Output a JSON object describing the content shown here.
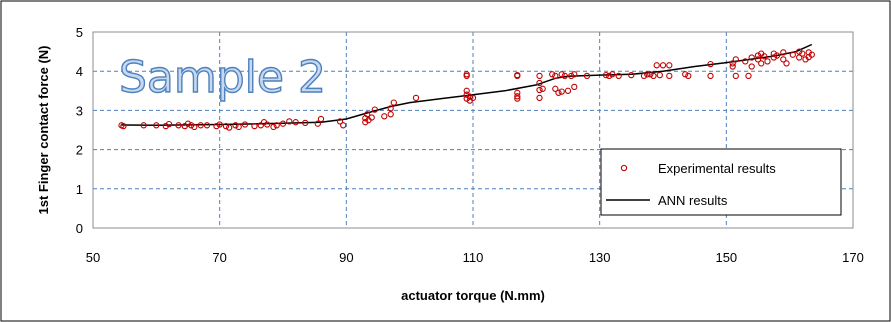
{
  "chart_data": {
    "type": "scatter",
    "xlabel": "actuator torque (N.mm)",
    "ylabel": "1st Finger contact force (N)",
    "annotation": "Sample 2",
    "xlim": [
      50,
      170
    ],
    "ylim": [
      0,
      5
    ],
    "xticks": [
      50,
      70,
      90,
      110,
      130,
      150,
      170
    ],
    "yticks": [
      0,
      1,
      2,
      3,
      4,
      5
    ],
    "grid": true,
    "legend_position": "bottom-right",
    "colors": {
      "experimental": "#c00000",
      "ann": "#000000",
      "grid": "#4f81bd",
      "annotation_fill": "#c6d9f1",
      "annotation_stroke": "#4f81bd"
    },
    "series": [
      {
        "name": "Experimental results",
        "kind": "scatter",
        "points": [
          [
            54.5,
            2.62
          ],
          [
            54.8,
            2.6
          ],
          [
            58,
            2.62
          ],
          [
            60,
            2.62
          ],
          [
            61.5,
            2.6
          ],
          [
            62,
            2.65
          ],
          [
            63.5,
            2.62
          ],
          [
            64.5,
            2.6
          ],
          [
            65,
            2.66
          ],
          [
            65.5,
            2.62
          ],
          [
            66,
            2.58
          ],
          [
            67,
            2.62
          ],
          [
            68,
            2.62
          ],
          [
            69.5,
            2.6
          ],
          [
            70,
            2.64
          ],
          [
            71,
            2.6
          ],
          [
            71.5,
            2.56
          ],
          [
            72.5,
            2.62
          ],
          [
            73,
            2.58
          ],
          [
            74,
            2.64
          ],
          [
            75.5,
            2.6
          ],
          [
            76.5,
            2.62
          ],
          [
            77,
            2.7
          ],
          [
            77.5,
            2.64
          ],
          [
            78.5,
            2.58
          ],
          [
            79,
            2.62
          ],
          [
            80,
            2.66
          ],
          [
            81,
            2.72
          ],
          [
            82,
            2.7
          ],
          [
            83.5,
            2.68
          ],
          [
            85.5,
            2.66
          ],
          [
            86,
            2.78
          ],
          [
            89,
            2.72
          ],
          [
            89.5,
            2.62
          ],
          [
            93,
            2.7
          ],
          [
            93,
            2.8
          ],
          [
            93.3,
            2.9
          ],
          [
            93.5,
            2.75
          ],
          [
            94,
            2.82
          ],
          [
            94.5,
            3.02
          ],
          [
            96,
            2.85
          ],
          [
            97,
            2.9
          ],
          [
            97,
            3.05
          ],
          [
            97.5,
            3.2
          ],
          [
            101,
            3.32
          ],
          [
            109,
            3.88
          ],
          [
            109,
            3.92
          ],
          [
            109,
            3.5
          ],
          [
            109,
            3.4
          ],
          [
            109,
            3.3
          ],
          [
            109.5,
            3.35
          ],
          [
            109.5,
            3.25
          ],
          [
            110,
            3.32
          ],
          [
            117,
            3.88
          ],
          [
            117,
            3.9
          ],
          [
            117,
            3.45
          ],
          [
            117,
            3.36
          ],
          [
            117,
            3.3
          ],
          [
            120.5,
            3.88
          ],
          [
            120.5,
            3.7
          ],
          [
            120.5,
            3.52
          ],
          [
            120.5,
            3.32
          ],
          [
            121,
            3.55
          ],
          [
            122.5,
            3.92
          ],
          [
            123,
            3.88
          ],
          [
            123,
            3.55
          ],
          [
            123.5,
            3.45
          ],
          [
            124,
            3.92
          ],
          [
            124,
            3.48
          ],
          [
            124.5,
            3.88
          ],
          [
            125,
            3.5
          ],
          [
            125.5,
            3.88
          ],
          [
            126,
            3.92
          ],
          [
            126,
            3.6
          ],
          [
            128,
            3.88
          ],
          [
            131,
            3.9
          ],
          [
            131.5,
            3.88
          ],
          [
            132,
            3.92
          ],
          [
            133,
            3.88
          ],
          [
            135,
            3.9
          ],
          [
            137,
            3.88
          ],
          [
            137.5,
            3.92
          ],
          [
            138,
            3.92
          ],
          [
            138.5,
            3.88
          ],
          [
            139,
            4.15
          ],
          [
            139.5,
            3.9
          ],
          [
            140,
            4.15
          ],
          [
            141,
            3.88
          ],
          [
            141,
            4.15
          ],
          [
            143.5,
            3.92
          ],
          [
            144,
            3.88
          ],
          [
            147.5,
            4.18
          ],
          [
            147.5,
            3.88
          ],
          [
            151,
            4.2
          ],
          [
            151,
            4.12
          ],
          [
            151.5,
            3.88
          ],
          [
            151.5,
            4.3
          ],
          [
            153,
            4.25
          ],
          [
            153.5,
            3.88
          ],
          [
            154,
            4.12
          ],
          [
            154,
            4.35
          ],
          [
            155,
            4.4
          ],
          [
            155,
            4.3
          ],
          [
            155.5,
            4.45
          ],
          [
            155.5,
            4.2
          ],
          [
            156,
            4.38
          ],
          [
            156.5,
            4.25
          ],
          [
            157.5,
            4.45
          ],
          [
            157.5,
            4.35
          ],
          [
            158,
            4.4
          ],
          [
            159,
            4.48
          ],
          [
            159,
            4.3
          ],
          [
            159.5,
            4.2
          ],
          [
            160.5,
            4.42
          ],
          [
            161.5,
            4.5
          ],
          [
            161.5,
            4.35
          ],
          [
            162,
            4.45
          ],
          [
            162.5,
            4.3
          ],
          [
            163,
            4.48
          ],
          [
            163.5,
            4.42
          ],
          [
            163,
            4.36
          ]
        ]
      },
      {
        "name": "ANN results",
        "kind": "line",
        "points": [
          [
            54.5,
            2.63
          ],
          [
            60,
            2.62
          ],
          [
            70,
            2.64
          ],
          [
            80,
            2.67
          ],
          [
            86,
            2.7
          ],
          [
            90,
            2.78
          ],
          [
            93,
            2.92
          ],
          [
            97,
            3.1
          ],
          [
            100,
            3.2
          ],
          [
            105,
            3.3
          ],
          [
            110,
            3.4
          ],
          [
            115,
            3.5
          ],
          [
            120,
            3.65
          ],
          [
            123,
            3.82
          ],
          [
            125,
            3.87
          ],
          [
            130,
            3.9
          ],
          [
            135,
            3.92
          ],
          [
            140,
            4.0
          ],
          [
            145,
            4.12
          ],
          [
            150,
            4.22
          ],
          [
            155,
            4.33
          ],
          [
            158,
            4.4
          ],
          [
            161,
            4.5
          ],
          [
            163.5,
            4.68
          ]
        ]
      }
    ]
  }
}
